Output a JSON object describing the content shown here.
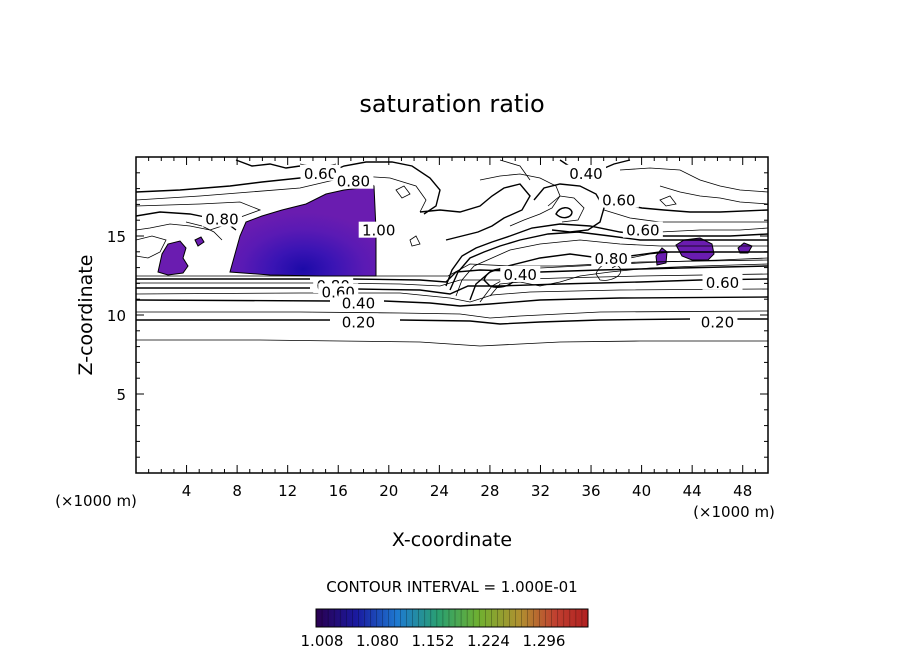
{
  "chart_data": {
    "type": "contour",
    "title": "saturation ratio",
    "xlabel": "X-coordinate",
    "ylabel": "Z-coordinate",
    "x_unit_left": "(×1000 m)",
    "x_unit_right": "(×1000 m)",
    "xlim": [
      0,
      50
    ],
    "ylim": [
      0,
      20
    ],
    "x_ticks": [
      4,
      8,
      12,
      16,
      20,
      24,
      28,
      32,
      36,
      40,
      44,
      48
    ],
    "y_ticks": [
      5,
      10,
      15
    ],
    "contour_interval_text": "CONTOUR INTERVAL = 1.000E-01",
    "colorbar": {
      "labels": [
        "1.008",
        "1.080",
        "1.152",
        "1.224",
        "1.296"
      ],
      "colors": [
        "#2a0050",
        "#1a1aa0",
        "#1e7ad0",
        "#2aa070",
        "#70b030",
        "#b09030",
        "#c04030",
        "#b02020"
      ]
    },
    "contour_labels": [
      {
        "text": "0.60",
        "x": 14.6,
        "y": 19.0
      },
      {
        "text": "0.80",
        "x": 17.2,
        "y": 18.5
      },
      {
        "text": "0.40",
        "x": 35.6,
        "y": 19.0
      },
      {
        "text": "0.80",
        "x": 6.8,
        "y": 16.1
      },
      {
        "text": "1.00",
        "x": 19.2,
        "y": 15.4
      },
      {
        "text": "0.60",
        "x": 38.2,
        "y": 17.3
      },
      {
        "text": "0.60",
        "x": 40.1,
        "y": 15.4
      },
      {
        "text": "0.80",
        "x": 37.6,
        "y": 13.6
      },
      {
        "text": "0.40",
        "x": 30.4,
        "y": 12.6
      },
      {
        "text": "0.60",
        "x": 46.4,
        "y": 12.1
      },
      {
        "text": "0.80",
        "x": 15.6,
        "y": 11.9
      },
      {
        "text": "0.60",
        "x": 16.0,
        "y": 11.5
      },
      {
        "text": "0.40",
        "x": 17.6,
        "y": 10.8
      },
      {
        "text": "0.20",
        "x": 17.6,
        "y": 9.6
      },
      {
        "text": "0.20",
        "x": 46.0,
        "y": 9.6
      }
    ],
    "supersaturated_regions_color": "#6a1cb0",
    "minimum_contour_level_z": 8.4
  }
}
